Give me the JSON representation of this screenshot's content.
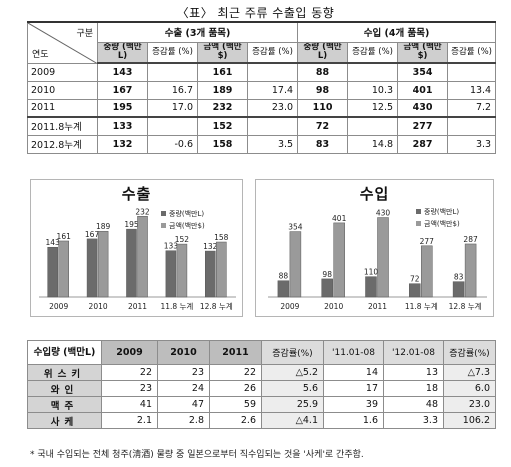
{
  "title": "〈표〉 최근 주류 수출입 동향",
  "top_table": {
    "corner_top": "구분",
    "corner_bottom": "연도",
    "export_header": "수출 (3개 품목)",
    "import_header": "수입 (4개 품목)",
    "sub_headers": [
      "중량 (백만L)",
      "증감률 (%)",
      "금액 (백만$)",
      "증감률 (%)",
      "중량 (백만L)",
      "증감률 (%)",
      "금액 (백만$)",
      "증감률 (%)"
    ],
    "rows": [
      {
        "year": "2009",
        "values": [
          "143",
          "",
          "161",
          "",
          "88",
          "",
          "354",
          ""
        ]
      },
      {
        "year": "2010",
        "values": [
          "167",
          "16.7",
          "189",
          "17.4",
          "98",
          "10.3",
          "401",
          "13.4"
        ]
      },
      {
        "year": "2011",
        "values": [
          "195",
          "17.0",
          "232",
          "23.0",
          "110",
          "12.5",
          "430",
          "7.2"
        ]
      },
      {
        "year": "2011.8누계",
        "values": [
          "133",
          "",
          "152",
          "",
          "72",
          "",
          "277",
          ""
        ]
      },
      {
        "year": "2012.8누계",
        "values": [
          "132",
          "-0.6",
          "158",
          "3.5",
          "83",
          "14.8",
          "287",
          "3.3"
        ]
      }
    ]
  },
  "chart_data": [
    {
      "type": "bar",
      "title": "수출",
      "categories": [
        "2009",
        "2010",
        "2011",
        "11.8 누계",
        "12.8 누계"
      ],
      "series": [
        {
          "name": "중량(백만L)",
          "values": [
            143,
            167,
            195,
            133,
            132
          ]
        },
        {
          "name": "금액(백만$)",
          "values": [
            161,
            189,
            232,
            152,
            158
          ]
        }
      ],
      "legend": "top-right",
      "colors": [
        "#6b6b6b",
        "#9a9a9a"
      ]
    },
    {
      "type": "bar",
      "title": "수입",
      "categories": [
        "2009",
        "2010",
        "2011",
        "11.8 누계",
        "12.8 누계"
      ],
      "series": [
        {
          "name": "중량(백만L)",
          "values": [
            88,
            98,
            110,
            72,
            83
          ]
        },
        {
          "name": "금액(백만$)",
          "values": [
            354,
            401,
            430,
            277,
            287
          ]
        }
      ],
      "legend": "top-right",
      "colors": [
        "#6b6b6b",
        "#9a9a9a"
      ]
    }
  ],
  "bottom_table": {
    "corner": "수입량 (백만L)",
    "headers": [
      "2009",
      "2010",
      "2011",
      "증감률(%)",
      "'11.01-08",
      "'12.01-08",
      "증감률(%)"
    ],
    "rows": [
      {
        "label": "위스키",
        "values": [
          "22",
          "23",
          "22",
          "△5.2",
          "14",
          "13",
          "△7.3"
        ]
      },
      {
        "label": "와인",
        "values": [
          "23",
          "24",
          "26",
          "5.6",
          "17",
          "18",
          "6.0"
        ]
      },
      {
        "label": "맥주",
        "values": [
          "41",
          "47",
          "59",
          "25.9",
          "39",
          "48",
          "23.0"
        ]
      },
      {
        "label": "사케",
        "values": [
          "2.1",
          "2.8",
          "2.6",
          "△4.1",
          "1.6",
          "3.3",
          "106.2"
        ]
      }
    ]
  },
  "footnote": "* 국내 수입되는 전체 청주(淸酒) 물량 중 일본으로부터 직수입되는 것을 '사케'로 간주함."
}
